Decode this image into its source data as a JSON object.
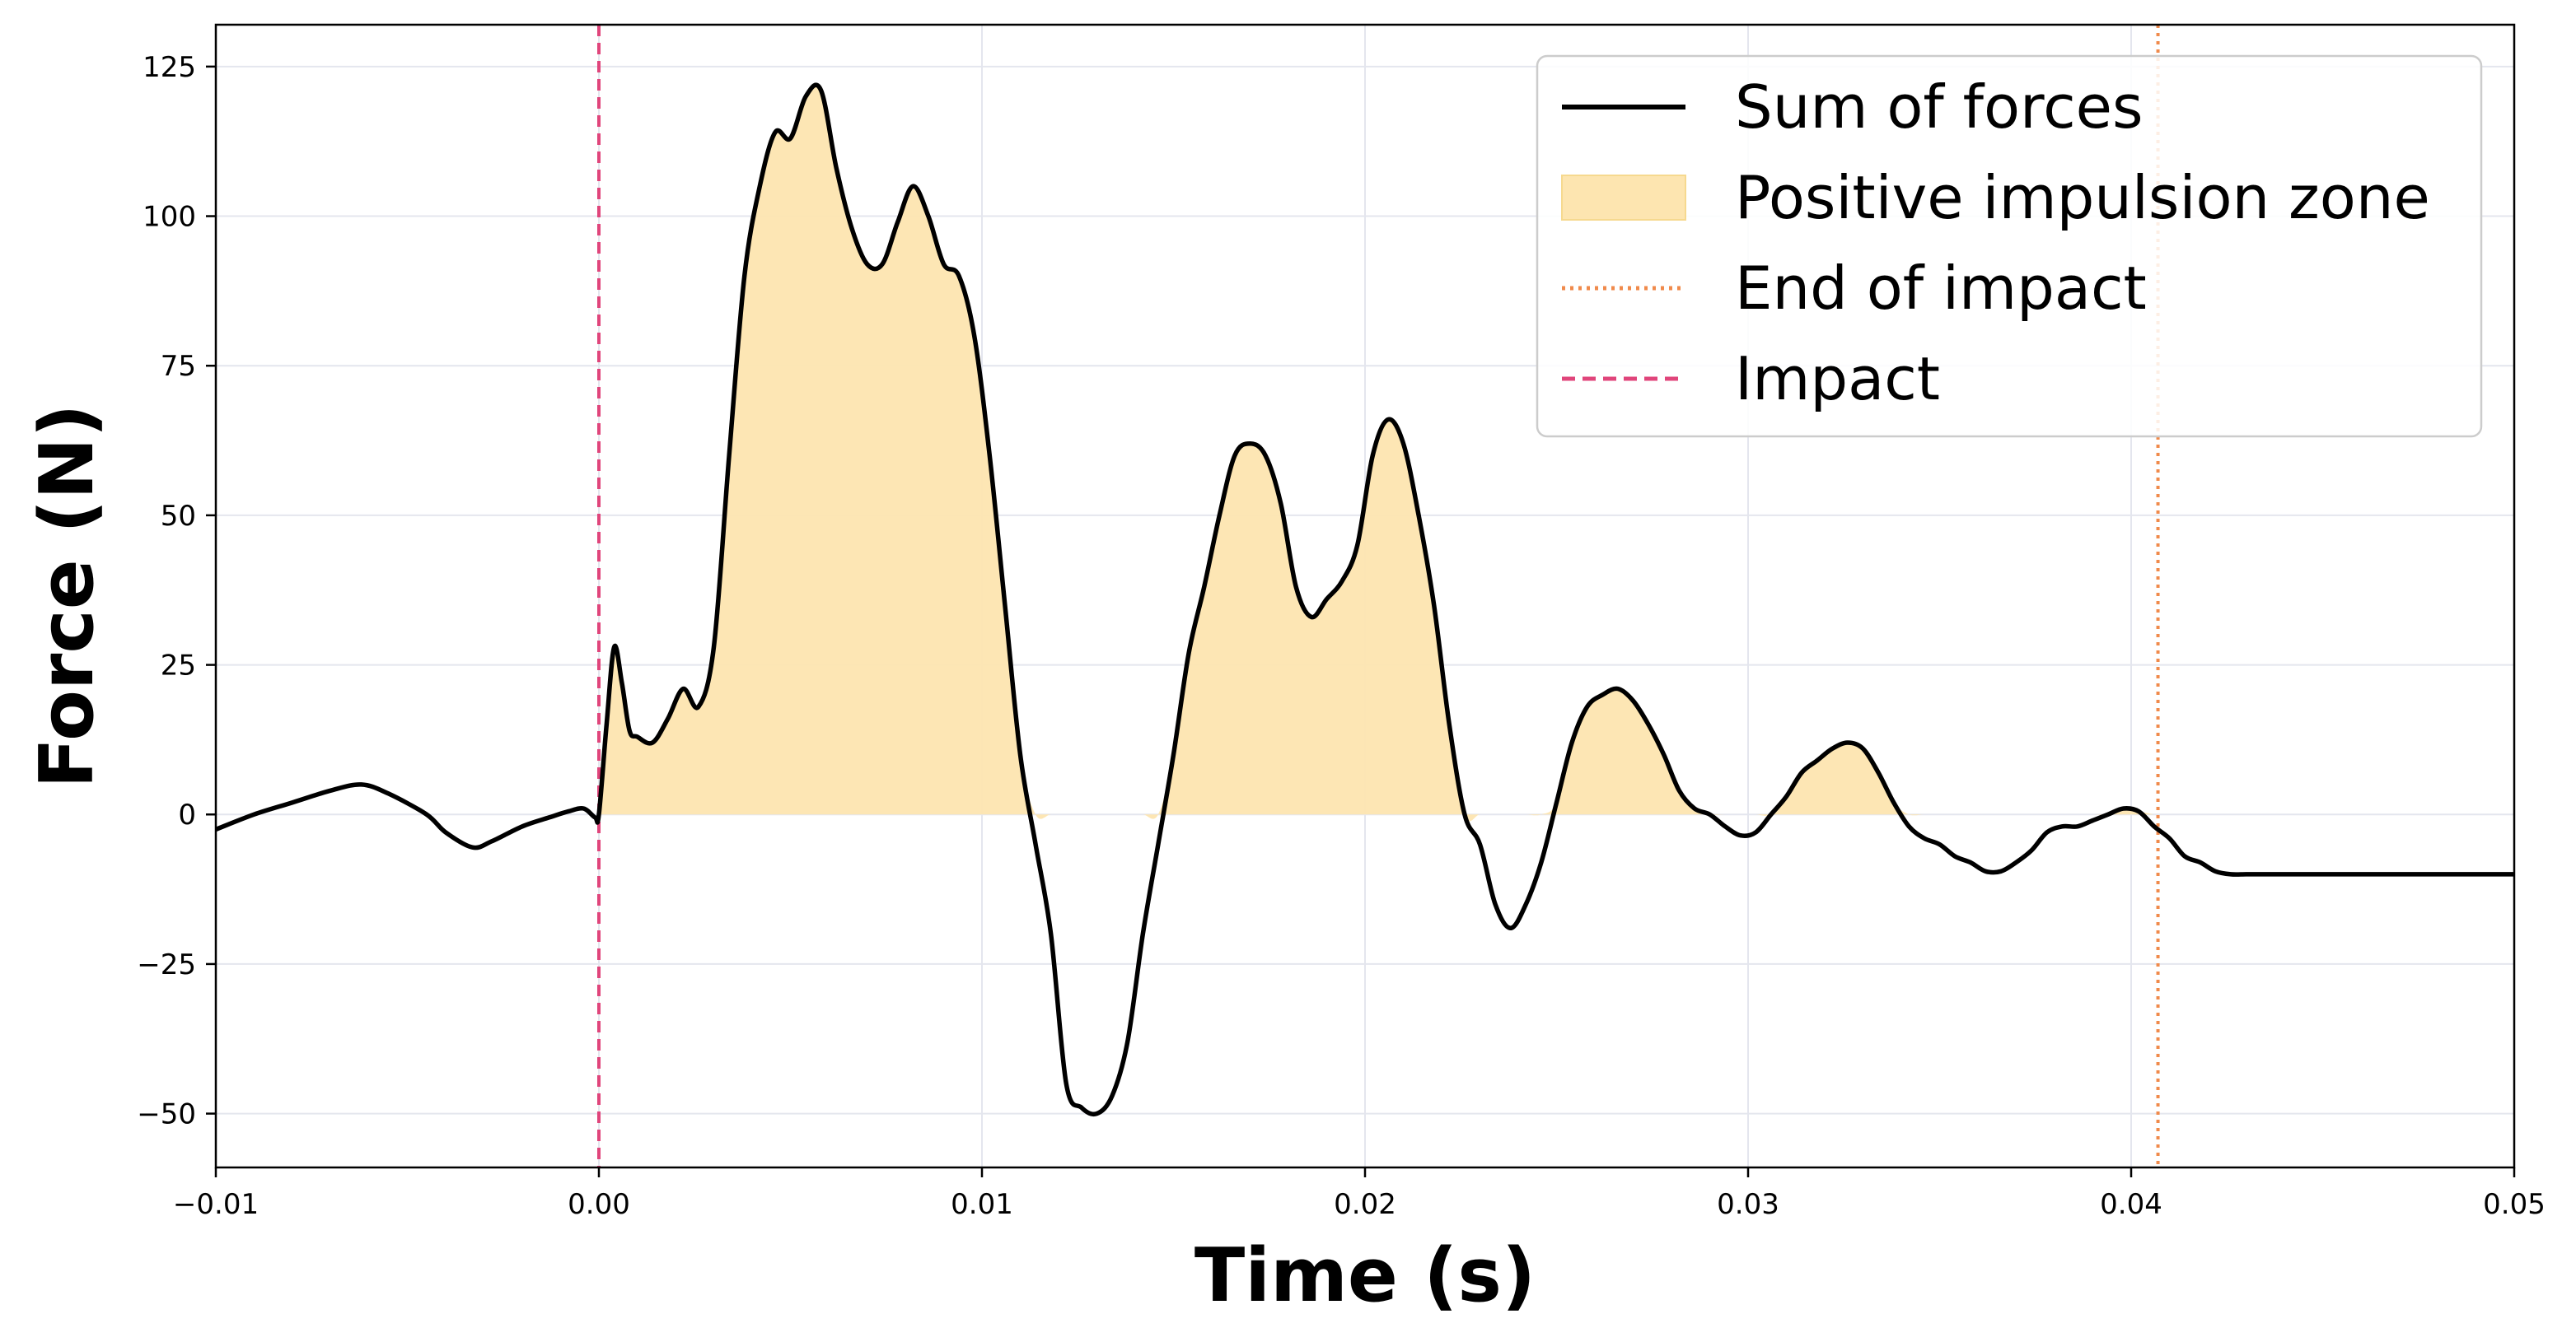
{
  "chart_data": {
    "type": "line",
    "xlabel": "Time (s)",
    "ylabel": "Force (N)",
    "xlim": [
      -0.01,
      0.05
    ],
    "ylim": [
      -59,
      132
    ],
    "xticks": [
      -0.01,
      0.0,
      0.01,
      0.02,
      0.03,
      0.04,
      0.05
    ],
    "xtick_labels": [
      "−0.01",
      "0.00",
      "0.01",
      "0.02",
      "0.03",
      "0.04",
      "0.05"
    ],
    "yticks": [
      -50,
      -25,
      0,
      25,
      50,
      75,
      100,
      125
    ],
    "ytick_labels": [
      "−50",
      "−25",
      "0",
      "25",
      "50",
      "75",
      "100",
      "125"
    ],
    "grid": true,
    "legend_position": "top-right",
    "legend": [
      {
        "label": "Sum of forces",
        "style": "solid",
        "color": "#000000"
      },
      {
        "label": "Positive impulsion zone",
        "style": "fill",
        "color": "#fde5b0"
      },
      {
        "label": "End of impact",
        "style": "dotted",
        "color": "#f08a4b"
      },
      {
        "label": "Impact",
        "style": "dashed",
        "color": "#e0457b"
      }
    ],
    "impact_time": 0.0,
    "end_of_impact_time": 0.0407,
    "series": [
      {
        "name": "Sum of forces",
        "x": [
          -0.01,
          -0.009,
          -0.008,
          -0.007,
          -0.0062,
          -0.0055,
          -0.0045,
          -0.004,
          -0.0033,
          -0.0028,
          -0.002,
          -0.0013,
          -0.0008,
          -0.0004,
          -0.0001,
          0.0,
          0.0002,
          0.0004,
          0.0006,
          0.0008,
          0.001,
          0.0014,
          0.0018,
          0.0022,
          0.0026,
          0.003,
          0.0034,
          0.0038,
          0.0042,
          0.0046,
          0.005,
          0.0054,
          0.0058,
          0.0062,
          0.0066,
          0.007,
          0.0074,
          0.0078,
          0.0082,
          0.0086,
          0.009,
          0.0094,
          0.0098,
          0.0102,
          0.0106,
          0.011,
          0.0114,
          0.0118,
          0.0122,
          0.0126,
          0.013,
          0.0134,
          0.0138,
          0.0142,
          0.0146,
          0.015,
          0.0154,
          0.0158,
          0.0162,
          0.0166,
          0.017,
          0.0174,
          0.0178,
          0.0182,
          0.0186,
          0.019,
          0.0194,
          0.0198,
          0.0202,
          0.0206,
          0.021,
          0.0214,
          0.0218,
          0.0222,
          0.0226,
          0.023,
          0.0234,
          0.0238,
          0.0242,
          0.0246,
          0.025,
          0.0254,
          0.0258,
          0.0262,
          0.0266,
          0.027,
          0.0274,
          0.0278,
          0.0282,
          0.0286,
          0.029,
          0.0294,
          0.0298,
          0.0302,
          0.0306,
          0.031,
          0.0314,
          0.0318,
          0.0322,
          0.0326,
          0.033,
          0.0334,
          0.0338,
          0.0342,
          0.0346,
          0.035,
          0.0354,
          0.0358,
          0.0362,
          0.0366,
          0.037,
          0.0374,
          0.0378,
          0.0382,
          0.0386,
          0.039,
          0.0394,
          0.0398,
          0.0402,
          0.0406,
          0.041,
          0.0414,
          0.0418,
          0.0422,
          0.0426,
          0.043,
          0.0434,
          0.0438,
          0.0442,
          0.0446,
          0.045,
          0.0454,
          0.0458,
          0.0462,
          0.0466,
          0.047,
          0.0474,
          0.0478,
          0.0482,
          0.0486,
          0.049,
          0.0494,
          0.0498,
          0.05
        ],
        "y": [
          -2.5,
          0,
          2,
          4,
          5,
          3.5,
          0,
          -3,
          -5.5,
          -4.5,
          -2,
          -0.5,
          0.5,
          1,
          -0.5,
          0,
          15,
          28,
          22,
          14,
          13,
          12,
          16,
          21,
          18,
          28,
          60,
          90,
          105,
          114,
          113,
          120,
          121,
          108,
          98,
          92,
          92,
          99,
          105,
          100,
          92,
          90,
          80,
          60,
          35,
          10,
          -5,
          -20,
          -45,
          -49,
          -50,
          -47,
          -38,
          -20,
          -5,
          10,
          27,
          38,
          50,
          60,
          62,
          60,
          52,
          38,
          33,
          36,
          39,
          45,
          60,
          66,
          62,
          50,
          35,
          15,
          0,
          -5,
          -15,
          -19,
          -15,
          -8,
          2,
          12,
          18,
          20,
          21,
          19,
          15,
          10,
          4,
          1,
          0,
          -2,
          -3.5,
          -3,
          0,
          3,
          7,
          9,
          11,
          12,
          11,
          7,
          2,
          -2,
          -4,
          -5,
          -7,
          -8,
          -9.5,
          -9.5,
          -8,
          -6,
          -3,
          -2,
          -2,
          -1,
          0,
          1,
          0.5,
          -2,
          -4,
          -7,
          -8,
          -9.5,
          -10,
          -10,
          -10,
          -10,
          -10,
          -10,
          -10,
          -10,
          -10,
          -10,
          -10,
          -10,
          -10,
          -10,
          -10,
          -10,
          -10,
          -10,
          -10,
          -10
        ]
      }
    ]
  }
}
